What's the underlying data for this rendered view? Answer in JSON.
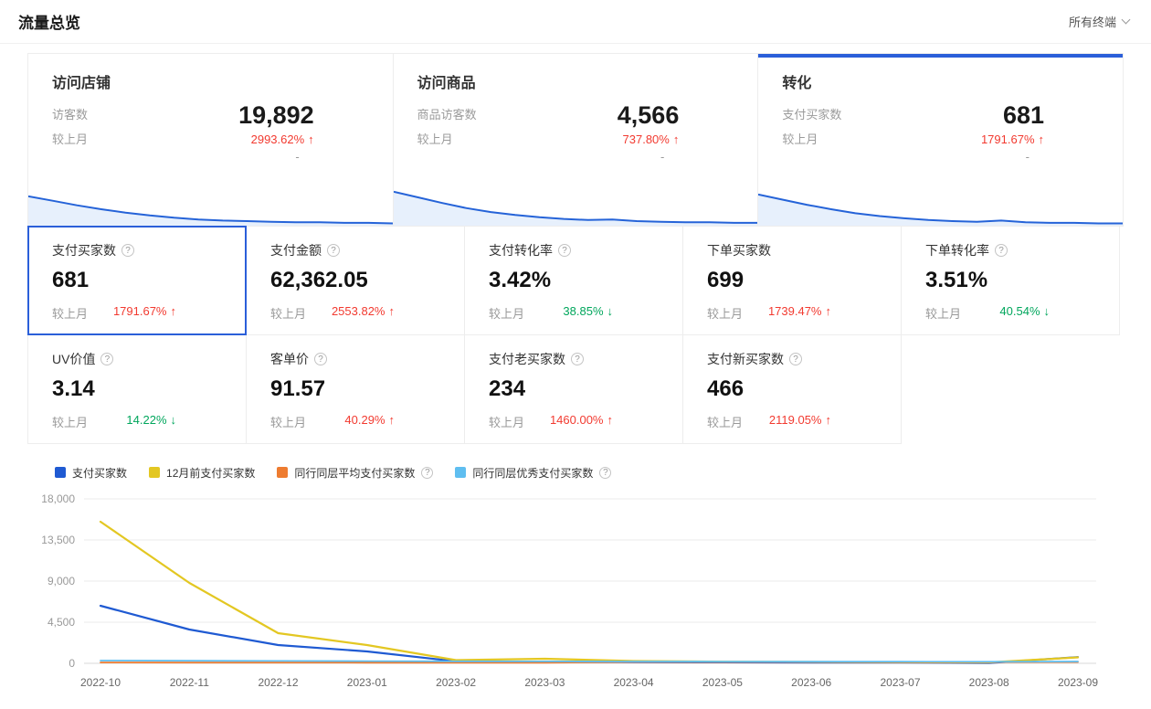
{
  "colors": {
    "accent_blue": "#2b5fd9",
    "up_red": "#f23a30",
    "down_green": "#00a65c",
    "spark_line": "#2563d8",
    "spark_fill": "#e7f0fc"
  },
  "header": {
    "title": "流量总览",
    "terminal_selector": "所有终端"
  },
  "top_cards": [
    {
      "title": "访问店铺",
      "metric_label": "访客数",
      "compare_label": "较上月",
      "value": "19,892",
      "change": "2993.62%",
      "direction": "up",
      "sub_value": "-",
      "selected": false,
      "spark": [
        52,
        44,
        36,
        29,
        23,
        18,
        14,
        11,
        9,
        8,
        7,
        6,
        6,
        5,
        5,
        4
      ]
    },
    {
      "title": "访问商品",
      "metric_label": "商品访客数",
      "compare_label": "较上月",
      "value": "4,566",
      "change": "737.80%",
      "direction": "up",
      "sub_value": "-",
      "selected": false,
      "spark": [
        60,
        50,
        40,
        31,
        24,
        19,
        15,
        12,
        10,
        11,
        8,
        7,
        6,
        6,
        5,
        5
      ]
    },
    {
      "title": "转化",
      "metric_label": "支付买家数",
      "compare_label": "较上月",
      "value": "681",
      "change": "1791.67%",
      "direction": "up",
      "sub_value": "-",
      "selected": true,
      "spark": [
        55,
        46,
        37,
        29,
        22,
        17,
        13,
        10,
        8,
        7,
        9,
        6,
        5,
        5,
        4,
        4
      ]
    }
  ],
  "stat_cards_row1": [
    {
      "title": "支付买家数",
      "has_info": true,
      "value": "681",
      "compare_label": "较上月",
      "change": "1791.67%",
      "direction": "up",
      "selected": true
    },
    {
      "title": "支付金额",
      "has_info": true,
      "value": "62,362.05",
      "compare_label": "较上月",
      "change": "2553.82%",
      "direction": "up",
      "selected": false
    },
    {
      "title": "支付转化率",
      "has_info": true,
      "value": "3.42%",
      "compare_label": "较上月",
      "change": "38.85%",
      "direction": "down",
      "selected": false
    },
    {
      "title": "下单买家数",
      "has_info": false,
      "value": "699",
      "compare_label": "较上月",
      "change": "1739.47%",
      "direction": "up",
      "selected": false
    },
    {
      "title": "下单转化率",
      "has_info": true,
      "value": "3.51%",
      "compare_label": "较上月",
      "change": "40.54%",
      "direction": "down",
      "selected": false
    }
  ],
  "stat_cards_row2": [
    {
      "title": "UV价值",
      "has_info": true,
      "value": "3.14",
      "compare_label": "较上月",
      "change": "14.22%",
      "direction": "down",
      "selected": false
    },
    {
      "title": "客单价",
      "has_info": true,
      "value": "91.57",
      "compare_label": "较上月",
      "change": "40.29%",
      "direction": "up",
      "selected": false
    },
    {
      "title": "支付老买家数",
      "has_info": true,
      "value": "234",
      "compare_label": "较上月",
      "change": "1460.00%",
      "direction": "up",
      "selected": false
    },
    {
      "title": "支付新买家数",
      "has_info": true,
      "value": "466",
      "compare_label": "较上月",
      "change": "2119.05%",
      "direction": "up",
      "selected": false
    }
  ],
  "chart_data": {
    "type": "line",
    "x": [
      "2022-10",
      "2022-11",
      "2022-12",
      "2023-01",
      "2023-02",
      "2023-03",
      "2023-04",
      "2023-05",
      "2023-06",
      "2023-07",
      "2023-08",
      "2023-09"
    ],
    "ylim": [
      0,
      18000
    ],
    "yticks": [
      0,
      4500,
      9000,
      13500,
      18000
    ],
    "grid": true,
    "legend_position": "top-left",
    "series": [
      {
        "name": "支付买家数",
        "color": "#1f5ad2",
        "has_info": false,
        "values": [
          6300,
          3700,
          2000,
          1300,
          220,
          160,
          130,
          110,
          95,
          80,
          36,
          681
        ]
      },
      {
        "name": "12月前支付买家数",
        "color": "#e3c722",
        "has_info": false,
        "values": [
          15500,
          8800,
          3300,
          2000,
          350,
          500,
          250,
          180,
          150,
          120,
          100,
          650
        ]
      },
      {
        "name": "同行同层平均支付买家数",
        "color": "#ee7c30",
        "has_info": true,
        "values": [
          90,
          85,
          80,
          75,
          70,
          70,
          150,
          145,
          140,
          135,
          130,
          140
        ]
      },
      {
        "name": "同行同层优秀支付买家数",
        "color": "#5fbef0",
        "has_info": true,
        "values": [
          300,
          280,
          260,
          240,
          220,
          210,
          200,
          190,
          185,
          180,
          175,
          200
        ]
      }
    ]
  }
}
